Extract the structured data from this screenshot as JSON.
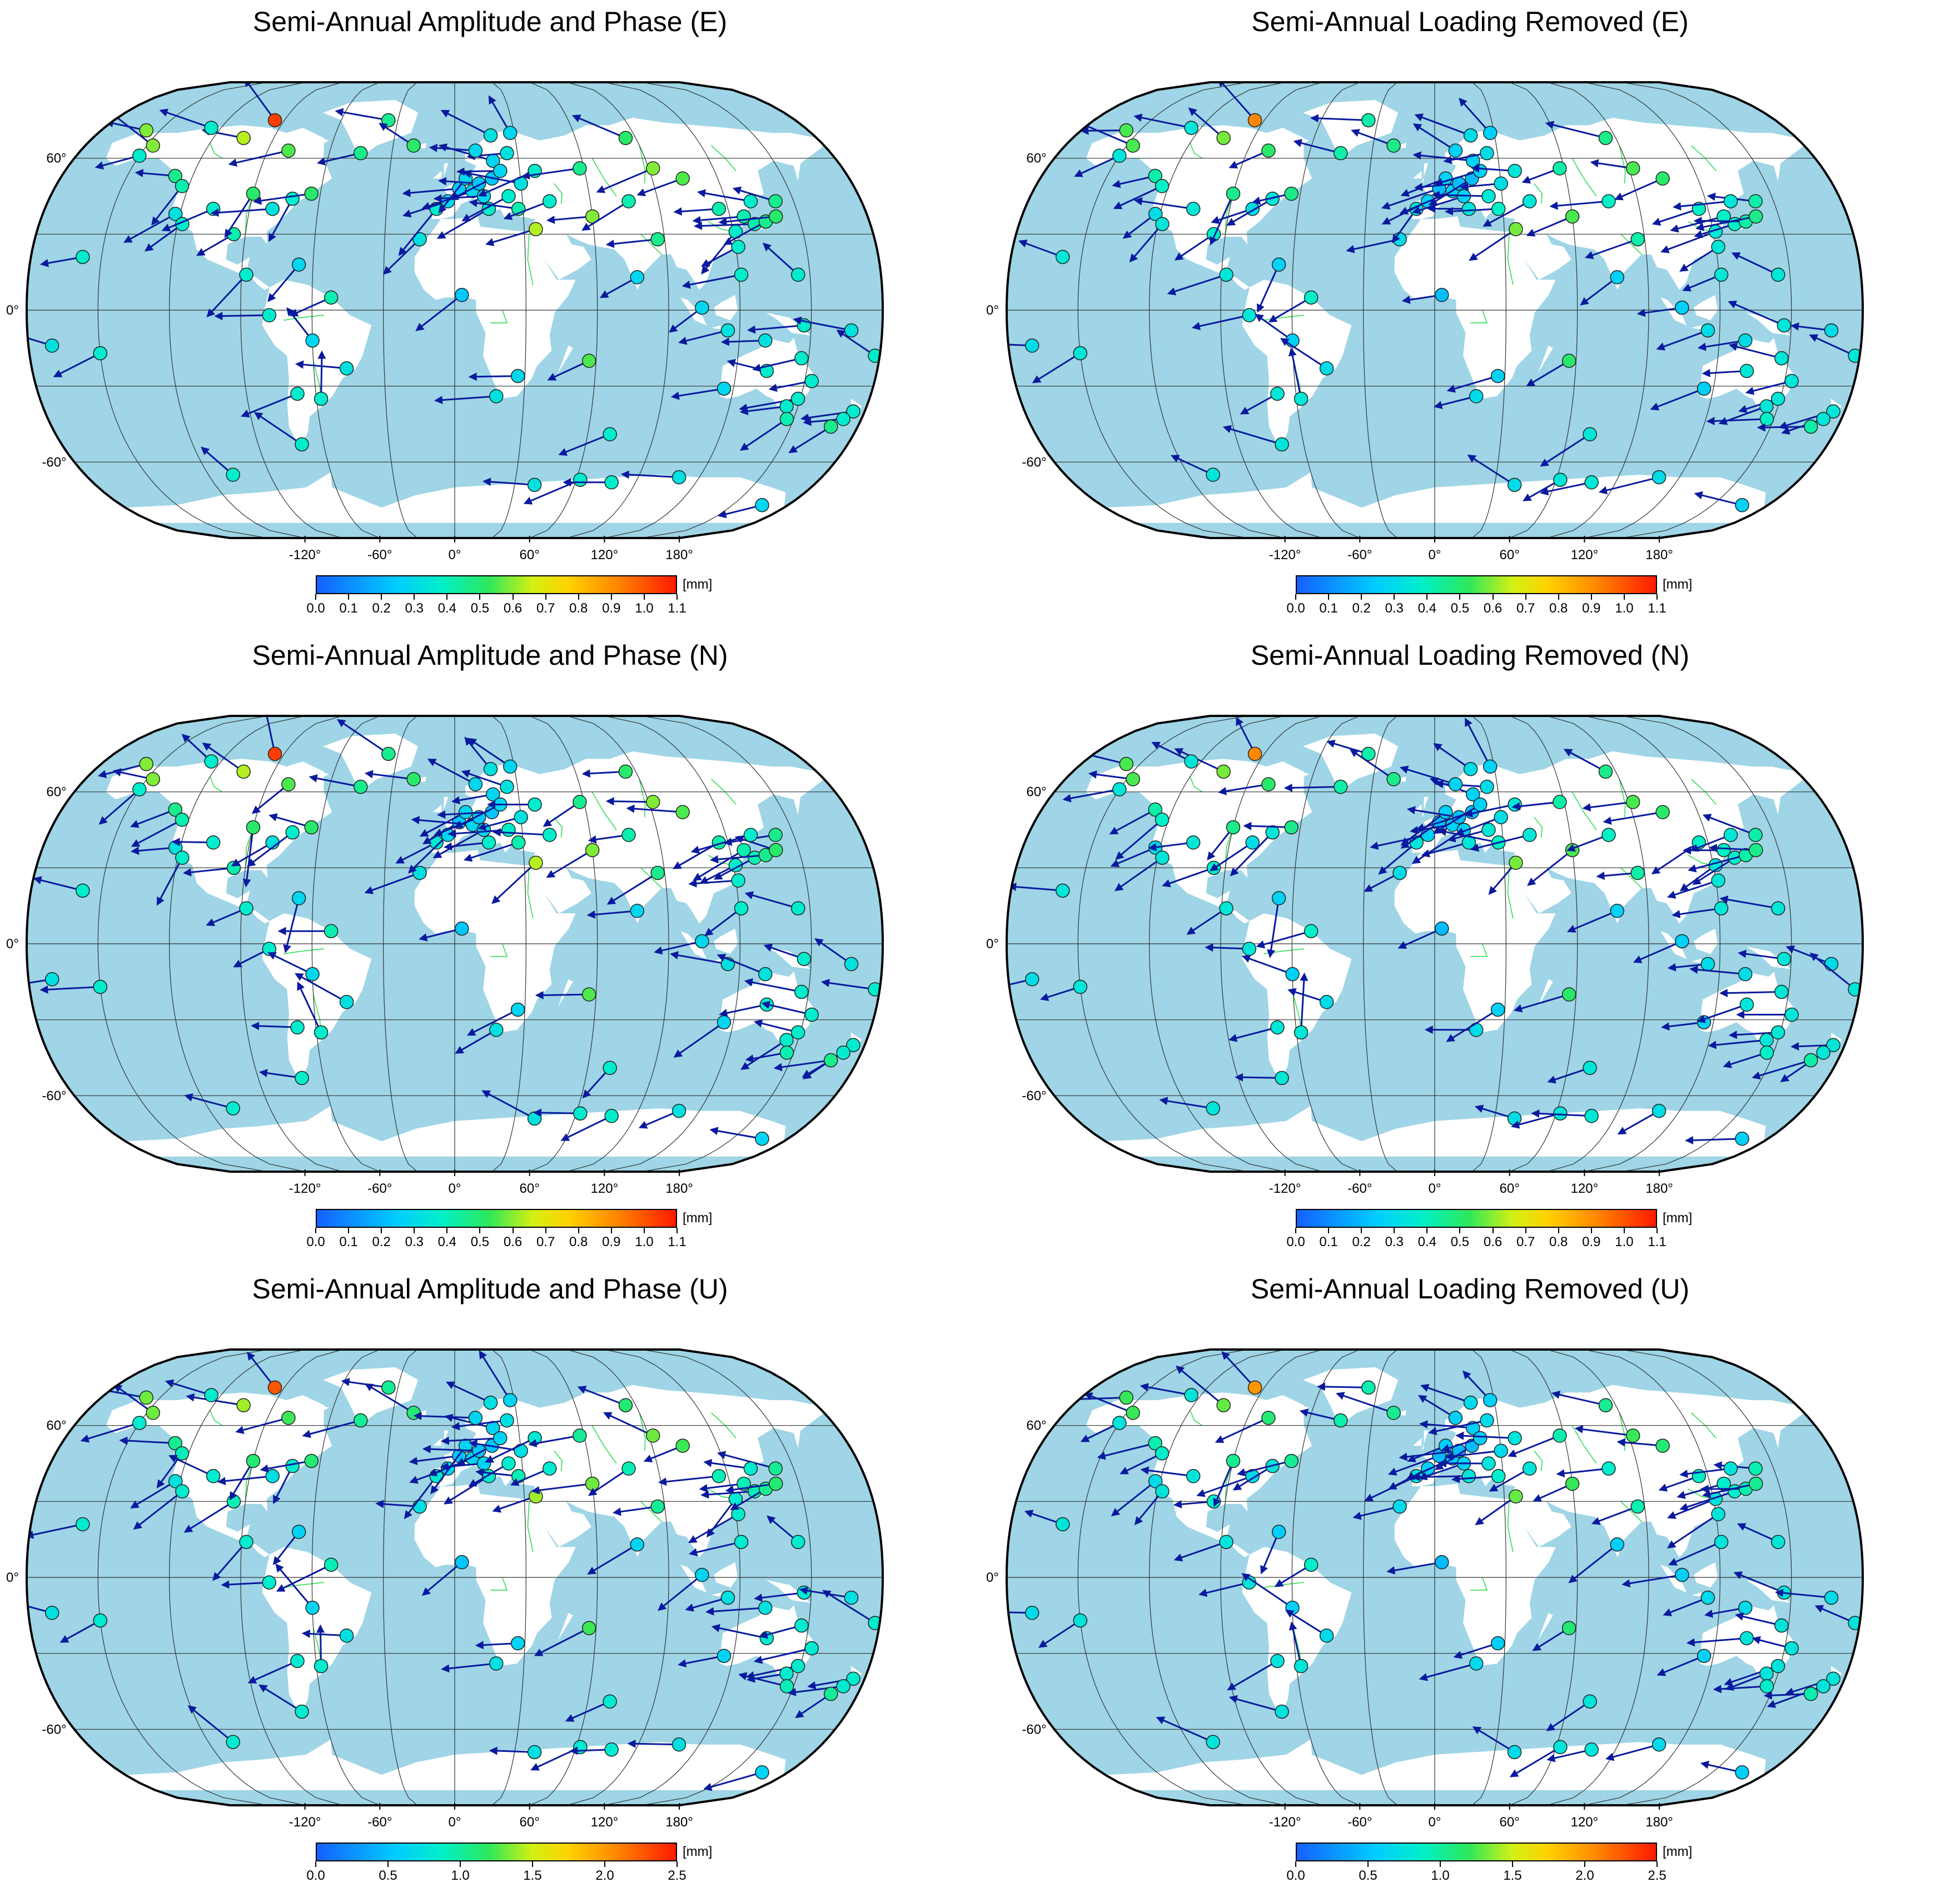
{
  "figure": {
    "colors": {
      "ocean": "#9fd5e6",
      "land": "#ffffff",
      "rivers": "#33dd55",
      "graticule": "#333333",
      "vectors": "#0a1a9e",
      "frame": "#000000"
    },
    "colormap": [
      "#1560ff",
      "#00ccff",
      "#00f0c8",
      "#2ee85a",
      "#d2f014",
      "#ffd200",
      "#ff8a00",
      "#ff1a00"
    ],
    "colorbar_unit": "[mm]",
    "lon_labels": [
      "-120°",
      "-60°",
      "0°",
      "60°",
      "120°",
      "180°"
    ],
    "lat_labels": [
      "60°",
      "0°",
      "-60°"
    ],
    "colorbar_ticks_horizontal": [
      "0.0",
      "0.1",
      "0.2",
      "0.3",
      "0.4",
      "0.5",
      "0.6",
      "0.7",
      "0.8",
      "0.9",
      "1.0",
      "1.1"
    ],
    "colorbar_ticks_vertical": [
      "0.0",
      "0.5",
      "1.0",
      "1.5",
      "2.0",
      "2.5"
    ]
  },
  "panels": [
    {
      "title": "Semi-Annual Amplitude and Phase (E)",
      "component": "E",
      "max": 1.1
    },
    {
      "title": "Semi-Annual Loading Removed (E)",
      "component": "E",
      "max": 1.1
    },
    {
      "title": "Semi-Annual Amplitude and Phase (N)",
      "component": "N",
      "max": 1.1
    },
    {
      "title": "Semi-Annual Loading Removed (N)",
      "component": "N",
      "max": 1.1
    },
    {
      "title": "Semi-Annual Amplitude and Phase (U)",
      "component": "U",
      "max": 2.5
    },
    {
      "title": "Semi-Annual Loading Removed (U)",
      "component": "U",
      "max": 2.5
    }
  ],
  "stations": [
    {
      "lon": -128,
      "lat": 53,
      "a": 0.4,
      "d": 200
    },
    {
      "lon": -123,
      "lat": 49,
      "a": 0.35,
      "d": 220
    },
    {
      "lon": -122,
      "lat": 38,
      "a": 0.25,
      "d": 210
    },
    {
      "lon": -118,
      "lat": 34,
      "a": 0.3,
      "d": 230
    },
    {
      "lon": -106,
      "lat": 40,
      "a": 0.3,
      "d": 180
    },
    {
      "lon": -95,
      "lat": 30,
      "a": 0.35,
      "d": 200
    },
    {
      "lon": -90,
      "lat": 46,
      "a": 0.45,
      "d": 240
    },
    {
      "lon": -80,
      "lat": 40,
      "a": 0.25,
      "d": 200
    },
    {
      "lon": -72,
      "lat": 44,
      "a": 0.3,
      "d": 220
    },
    {
      "lon": -64,
      "lat": 46,
      "a": 0.45,
      "d": 180
    },
    {
      "lon": -150,
      "lat": 61,
      "a": 0.3,
      "d": 200
    },
    {
      "lon": -147,
      "lat": 65,
      "a": 0.55,
      "d": 160
    },
    {
      "lon": -105,
      "lat": 68,
      "a": 0.6,
      "d": 150
    },
    {
      "lon": -95,
      "lat": 75,
      "a": 1.05,
      "d": 120
    },
    {
      "lon": -80,
      "lat": 63,
      "a": 0.5,
      "d": 200
    },
    {
      "lon": -66,
      "lat": 18,
      "a": 0.2,
      "d": 250
    },
    {
      "lon": -88,
      "lat": 14,
      "a": 0.3,
      "d": 210
    },
    {
      "lon": -52,
      "lat": 5,
      "a": 0.35,
      "d": 200
    },
    {
      "lon": -78,
      "lat": -2,
      "a": 0.3,
      "d": 190
    },
    {
      "lon": -60,
      "lat": -12,
      "a": 0.2,
      "d": 150
    },
    {
      "lon": -46,
      "lat": -23,
      "a": 0.25,
      "d": 160
    },
    {
      "lon": -68,
      "lat": -33,
      "a": 0.3,
      "d": 200
    },
    {
      "lon": -58,
      "lat": -35,
      "a": 0.3,
      "d": 100
    },
    {
      "lon": -70,
      "lat": -53,
      "a": 0.3,
      "d": 170
    },
    {
      "lon": -45,
      "lat": 62,
      "a": 0.4,
      "d": 180
    },
    {
      "lon": -35,
      "lat": 75,
      "a": 0.4,
      "d": 170
    },
    {
      "lon": -20,
      "lat": 65,
      "a": 0.45,
      "d": 160
    },
    {
      "lon": -15,
      "lat": 28,
      "a": 0.25,
      "d": 200
    },
    {
      "lon": -8,
      "lat": 40,
      "a": 0.3,
      "d": 220
    },
    {
      "lon": -3,
      "lat": 43,
      "a": 0.2,
      "d": 200
    },
    {
      "lon": 2,
      "lat": 48,
      "a": 0.15,
      "d": 200
    },
    {
      "lon": 5,
      "lat": 52,
      "a": 0.2,
      "d": 210
    },
    {
      "lon": 8,
      "lat": 47,
      "a": 0.2,
      "d": 190
    },
    {
      "lon": 11,
      "lat": 50,
      "a": 0.15,
      "d": 180
    },
    {
      "lon": 13,
      "lat": 45,
      "a": 0.2,
      "d": 200
    },
    {
      "lon": 15,
      "lat": 40,
      "a": 0.3,
      "d": 190
    },
    {
      "lon": 17,
      "lat": 52,
      "a": 0.15,
      "d": 200
    },
    {
      "lon": 18,
      "lat": 59,
      "a": 0.2,
      "d": 170
    },
    {
      "lon": 21,
      "lat": 55,
      "a": 0.2,
      "d": 200
    },
    {
      "lon": 24,
      "lat": 45,
      "a": 0.3,
      "d": 190
    },
    {
      "lon": 25,
      "lat": 62,
      "a": 0.25,
      "d": 180
    },
    {
      "lon": 28,
      "lat": 40,
      "a": 0.35,
      "d": 180
    },
    {
      "lon": 30,
      "lat": 50,
      "a": 0.25,
      "d": 190
    },
    {
      "lon": 10,
      "lat": 63,
      "a": 0.2,
      "d": 160
    },
    {
      "lon": 18,
      "lat": 69,
      "a": 0.25,
      "d": 150
    },
    {
      "lon": 28,
      "lat": 70,
      "a": 0.2,
      "d": 130
    },
    {
      "lon": 35,
      "lat": 32,
      "a": 0.6,
      "d": 220
    },
    {
      "lon": 37,
      "lat": 55,
      "a": 0.3,
      "d": 190
    },
    {
      "lon": 42,
      "lat": 43,
      "a": 0.3,
      "d": 200
    },
    {
      "lon": 58,
      "lat": 56,
      "a": 0.4,
      "d": 200
    },
    {
      "lon": 60,
      "lat": 37,
      "a": 0.55,
      "d": 210
    },
    {
      "lon": 77,
      "lat": 43,
      "a": 0.35,
      "d": 200
    },
    {
      "lon": 77,
      "lat": 13,
      "a": 0.2,
      "d": 210
    },
    {
      "lon": 87,
      "lat": 28,
      "a": 0.4,
      "d": 200
    },
    {
      "lon": 92,
      "lat": 56,
      "a": 0.55,
      "d": 180
    },
    {
      "lon": 104,
      "lat": 52,
      "a": 0.5,
      "d": 190
    },
    {
      "lon": 85,
      "lat": 68,
      "a": 0.45,
      "d": 160
    },
    {
      "lon": 116,
      "lat": 40,
      "a": 0.35,
      "d": 200
    },
    {
      "lon": 121,
      "lat": 31,
      "a": 0.3,
      "d": 210
    },
    {
      "lon": 121,
      "lat": 25,
      "a": 0.3,
      "d": 200
    },
    {
      "lon": 126,
      "lat": 37,
      "a": 0.35,
      "d": 190
    },
    {
      "lon": 130,
      "lat": 34,
      "a": 0.35,
      "d": 200
    },
    {
      "lon": 135,
      "lat": 35,
      "a": 0.4,
      "d": 190
    },
    {
      "lon": 140,
      "lat": 37,
      "a": 0.45,
      "d": 180
    },
    {
      "lon": 142,
      "lat": 43,
      "a": 0.4,
      "d": 170
    },
    {
      "lon": 131,
      "lat": 43,
      "a": 0.3,
      "d": 190
    },
    {
      "lon": 104,
      "lat": 1,
      "a": 0.2,
      "d": 200
    },
    {
      "lon": 115,
      "lat": -8,
      "a": 0.25,
      "d": 190
    },
    {
      "lon": 121,
      "lat": 14,
      "a": 0.3,
      "d": 200
    },
    {
      "lon": 145,
      "lat": 14,
      "a": 0.3,
      "d": 160
    },
    {
      "lon": 147,
      "lat": -6,
      "a": 0.3,
      "d": 170
    },
    {
      "lon": 131,
      "lat": -12,
      "a": 0.25,
      "d": 180
    },
    {
      "lon": 116,
      "lat": -31,
      "a": 0.2,
      "d": 200
    },
    {
      "lon": 133,
      "lat": -24,
      "a": 0.3,
      "d": 190
    },
    {
      "lon": 147,
      "lat": -19,
      "a": 0.3,
      "d": 180
    },
    {
      "lon": 149,
      "lat": -35,
      "a": 0.3,
      "d": 190
    },
    {
      "lon": 145,
      "lat": -38,
      "a": 0.3,
      "d": 200
    },
    {
      "lon": 147,
      "lat": -43,
      "a": 0.35,
      "d": 190
    },
    {
      "lon": 153,
      "lat": -28,
      "a": 0.3,
      "d": 180
    },
    {
      "lon": 175,
      "lat": -40,
      "a": 0.3,
      "d": 190
    },
    {
      "lon": 172,
      "lat": -43,
      "a": 0.3,
      "d": 200
    },
    {
      "lon": 168,
      "lat": -46,
      "a": 0.4,
      "d": 190
    },
    {
      "lon": 167,
      "lat": -8,
      "a": 0.25,
      "d": 160
    },
    {
      "lon": 178,
      "lat": -18,
      "a": 0.3,
      "d": 150
    },
    {
      "lon": -170,
      "lat": -14,
      "a": 0.25,
      "d": 180
    },
    {
      "lon": -158,
      "lat": 21,
      "a": 0.3,
      "d": 170
    },
    {
      "lon": -150,
      "lat": -17,
      "a": 0.3,
      "d": 200
    },
    {
      "lon": 18,
      "lat": -34,
      "a": 0.25,
      "d": 190
    },
    {
      "lon": 27,
      "lat": -26,
      "a": 0.2,
      "d": 200
    },
    {
      "lon": 3,
      "lat": 6,
      "a": 0.15,
      "d": 200
    },
    {
      "lon": 57,
      "lat": -20,
      "a": 0.5,
      "d": 200
    },
    {
      "lon": 70,
      "lat": -49,
      "a": 0.3,
      "d": 210
    },
    {
      "lon": -108,
      "lat": -65,
      "a": 0.3,
      "d": 160
    },
    {
      "lon": 40,
      "lat": -69,
      "a": 0.25,
      "d": 160
    },
    {
      "lon": 62,
      "lat": -67,
      "a": 0.3,
      "d": 200
    },
    {
      "lon": 78,
      "lat": -68,
      "a": 0.3,
      "d": 190
    },
    {
      "lon": 110,
      "lat": -66,
      "a": 0.25,
      "d": 200
    },
    {
      "lon": 166,
      "lat": -77,
      "a": 0.2,
      "d": 180
    },
    {
      "lon": -125,
      "lat": 72,
      "a": 0.3,
      "d": 160
    },
    {
      "lon": -157,
      "lat": 71,
      "a": 0.55,
      "d": 180
    }
  ]
}
